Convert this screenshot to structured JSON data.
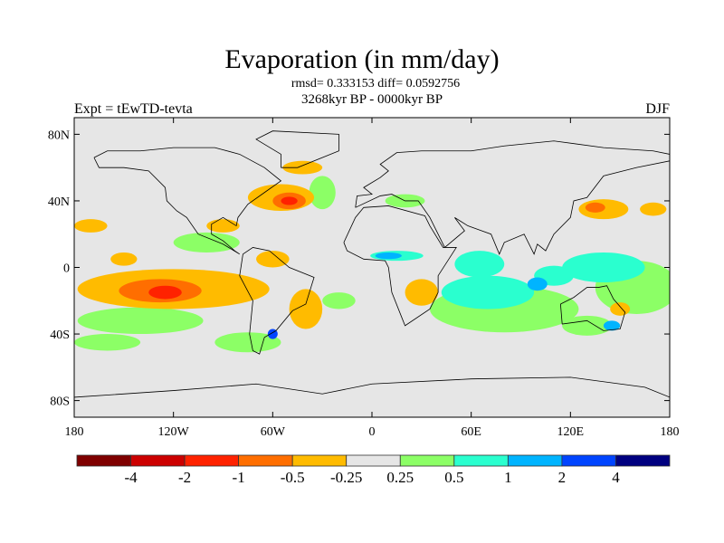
{
  "title": "Evaporation (in mm/day)",
  "subtitle_stats": "rmsd= 0.333153 diff= 0.0592756",
  "subtitle_period": "3268kyr BP - 0000kyr BP",
  "left_label": "Expt = tEwTD-tevta",
  "right_label": "DJF",
  "map": {
    "lat_ticks": [
      {
        "value": 80,
        "label": "80N"
      },
      {
        "value": 40,
        "label": "40N"
      },
      {
        "value": 0,
        "label": "0"
      },
      {
        "value": -40,
        "label": "40S"
      },
      {
        "value": -80,
        "label": "80S"
      }
    ],
    "lon_ticks": [
      {
        "value": -180,
        "label": "180"
      },
      {
        "value": -120,
        "label": "120W"
      },
      {
        "value": -60,
        "label": "60W"
      },
      {
        "value": 0,
        "label": "0"
      },
      {
        "value": 60,
        "label": "60E"
      },
      {
        "value": 120,
        "label": "120E"
      },
      {
        "value": 180,
        "label": "180"
      }
    ],
    "background_color": "#e6e6e6"
  },
  "colorbar": {
    "colors": [
      "#7f0000",
      "#cc0000",
      "#ff2200",
      "#ff6e00",
      "#ffbb00",
      "#e6e6e6",
      "#8cff66",
      "#2affcf",
      "#00b4ff",
      "#0044ff",
      "#000080"
    ],
    "labels": [
      "-4",
      "-2",
      "-1",
      "-0.5",
      "-0.25",
      "0.25",
      "0.5",
      "1",
      "2",
      "4"
    ]
  }
}
